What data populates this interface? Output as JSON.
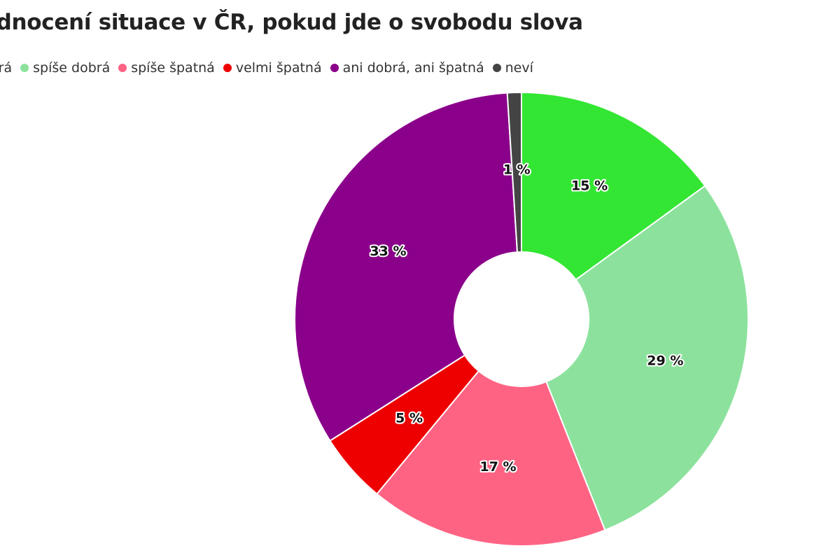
{
  "chart_data": {
    "type": "pie",
    "title": "Hodnocení situace v ČR, pokud jde o svobodu slova",
    "categories": [
      "velmi dobrá",
      "spíše dobrá",
      "spíše špatná",
      "velmi špatná",
      "ani dobrá, ani špatná",
      "neví"
    ],
    "legend_labels": [
      "obrá",
      "spíše dobrá",
      "spíše špatná",
      "velmi špatná",
      "ani dobrá, ani špatná",
      "neví"
    ],
    "values": [
      15,
      29,
      17,
      5,
      33,
      1
    ],
    "data_labels": [
      "15 %",
      "29 %",
      "17 %",
      "5 %",
      "33 %",
      "1 %"
    ],
    "colors": [
      "#33e633",
      "#8ce29d",
      "#ff6384",
      "#ee0000",
      "#8b008b",
      "#444444"
    ],
    "donut": true,
    "legend_position": "top-left"
  }
}
